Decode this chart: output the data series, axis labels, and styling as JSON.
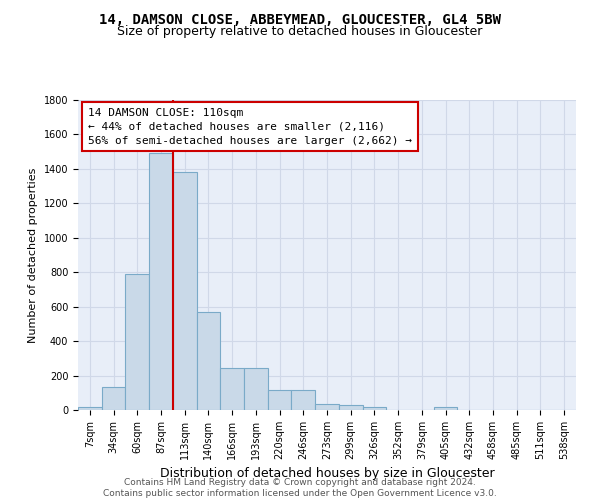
{
  "title": "14, DAMSON CLOSE, ABBEYMEAD, GLOUCESTER, GL4 5BW",
  "subtitle": "Size of property relative to detached houses in Gloucester",
  "xlabel": "Distribution of detached houses by size in Gloucester",
  "ylabel": "Number of detached properties",
  "bin_labels": [
    "7sqm",
    "34sqm",
    "60sqm",
    "87sqm",
    "113sqm",
    "140sqm",
    "166sqm",
    "193sqm",
    "220sqm",
    "246sqm",
    "273sqm",
    "299sqm",
    "326sqm",
    "352sqm",
    "379sqm",
    "405sqm",
    "432sqm",
    "458sqm",
    "485sqm",
    "511sqm",
    "538sqm"
  ],
  "bar_heights": [
    20,
    135,
    790,
    1490,
    1380,
    570,
    245,
    245,
    115,
    115,
    35,
    30,
    20,
    0,
    0,
    20,
    0,
    0,
    0,
    0,
    0
  ],
  "bar_color": "#c9d9e8",
  "bar_edge_color": "#7aaac8",
  "red_line_x": 3.5,
  "annotation_text": "14 DAMSON CLOSE: 110sqm\n← 44% of detached houses are smaller (2,116)\n56% of semi-detached houses are larger (2,662) →",
  "annotation_box_color": "#ffffff",
  "annotation_box_edge_color": "#cc0000",
  "red_line_color": "#cc0000",
  "grid_color": "#d0d8e8",
  "bg_color": "#e8eef8",
  "footer": "Contains HM Land Registry data © Crown copyright and database right 2024.\nContains public sector information licensed under the Open Government Licence v3.0.",
  "ylim": [
    0,
    1800
  ],
  "yticks": [
    0,
    200,
    400,
    600,
    800,
    1000,
    1200,
    1400,
    1600,
    1800
  ],
  "title_fontsize": 10,
  "subtitle_fontsize": 9,
  "ylabel_fontsize": 8,
  "xlabel_fontsize": 9,
  "tick_fontsize": 7,
  "footer_fontsize": 6.5
}
